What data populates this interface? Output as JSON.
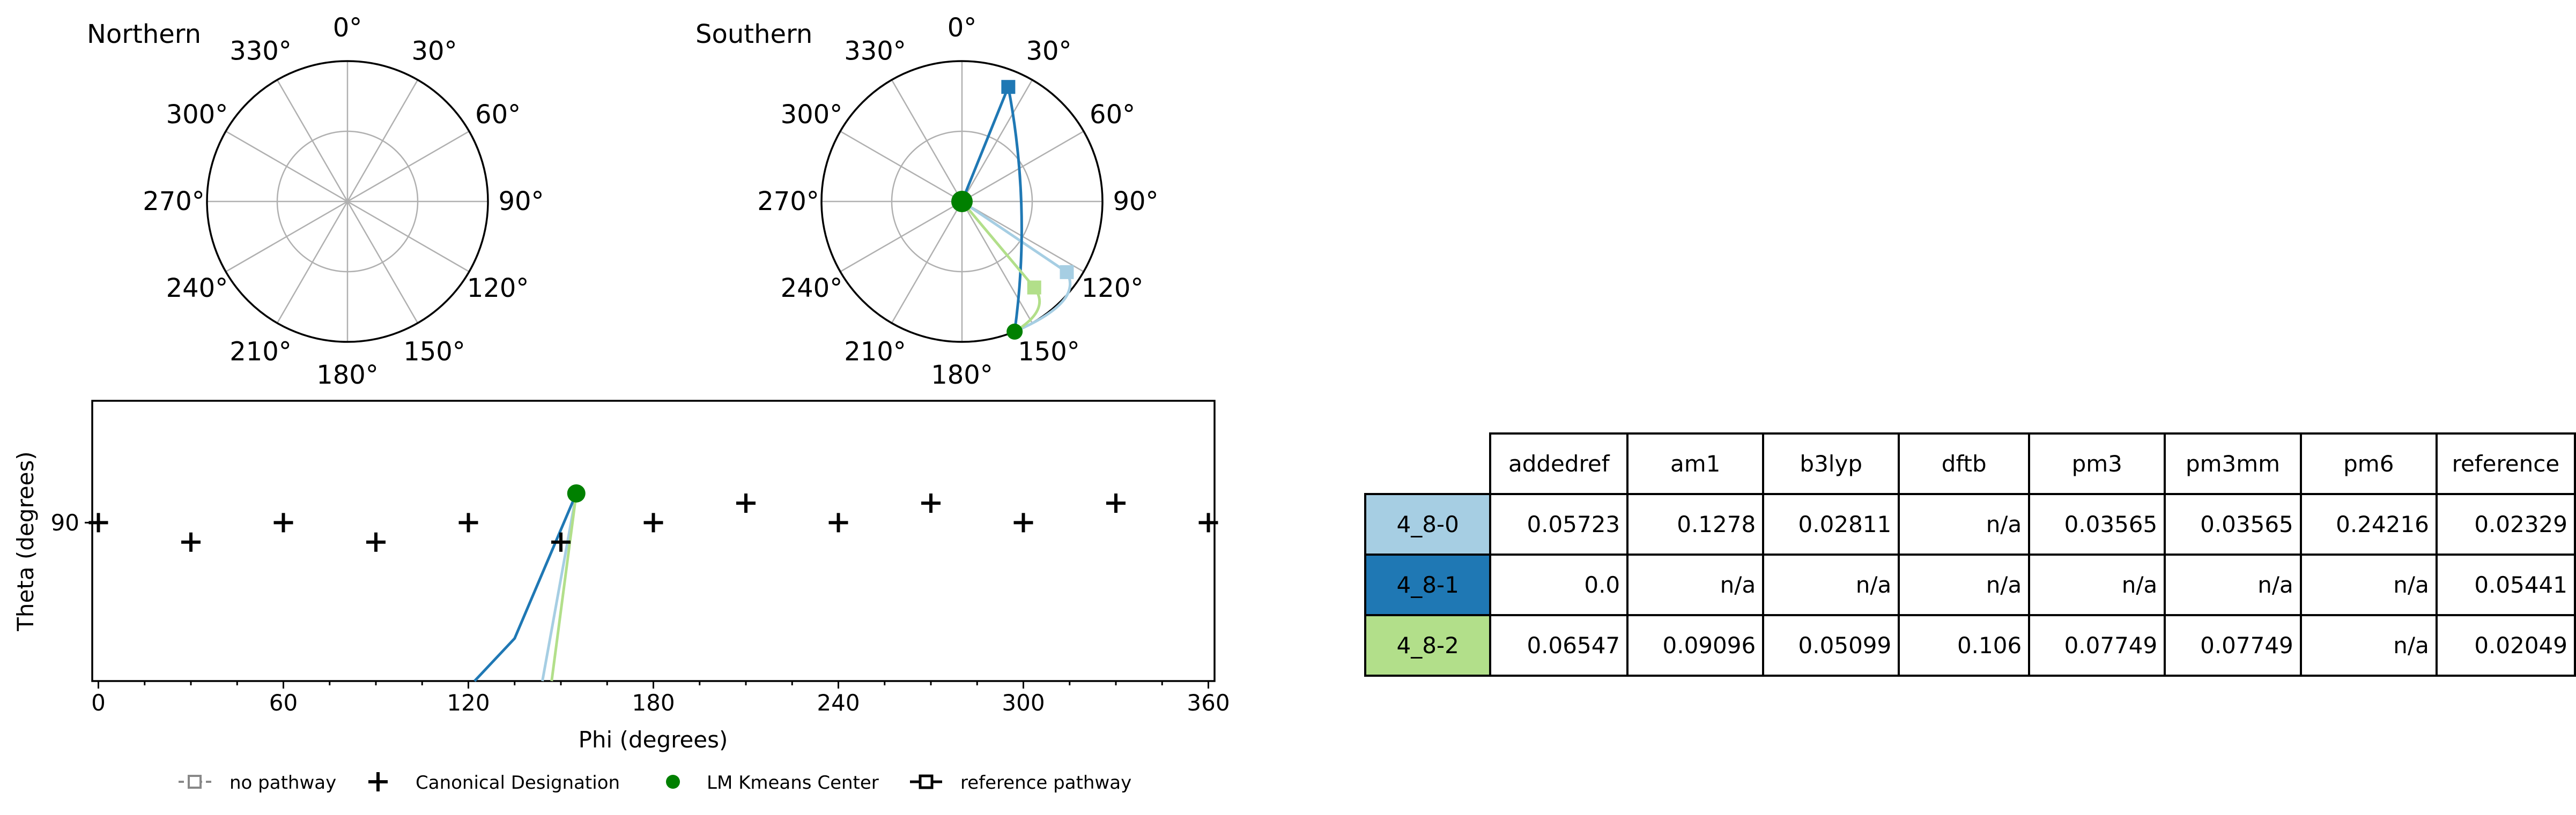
{
  "chart_data": [
    {
      "type": "polar",
      "title": "Northern",
      "angle_tick_labels": [
        "0°",
        "30°",
        "60°",
        "90°",
        "120°",
        "150°",
        "180°",
        "210°",
        "240°",
        "270°",
        "300°",
        "330°"
      ],
      "grid": true,
      "series": []
    },
    {
      "type": "polar",
      "title": "Southern",
      "angle_tick_labels": [
        "0°",
        "30°",
        "60°",
        "90°",
        "120°",
        "150°",
        "180°",
        "210°",
        "240°",
        "270°",
        "300°",
        "330°"
      ],
      "grid": true,
      "series": [
        {
          "name": "4_8-0",
          "color": "#a6cee3",
          "endpoint": {
            "phi": 124,
            "r": 0.9
          }
        },
        {
          "name": "4_8-1",
          "color": "#1f78b4",
          "endpoint": {
            "phi": 22,
            "r": 0.88
          }
        },
        {
          "name": "4_8-2",
          "color": "#b2df8a",
          "endpoint": {
            "phi": 140,
            "r": 0.8
          }
        }
      ],
      "lm_kmeans_center": [
        {
          "phi": 0,
          "r": 0.0
        },
        {
          "phi": 158,
          "r": 1.0
        }
      ]
    },
    {
      "type": "scatter",
      "xlabel": "Phi (degrees)",
      "ylabel": "Theta (degrees)",
      "xlim": [
        -2,
        362
      ],
      "x_ticks": [
        0,
        60,
        120,
        180,
        240,
        300,
        360
      ],
      "y_ticks": [
        90
      ],
      "ylim": [
        77,
        100
      ],
      "canonical_designation": [
        {
          "phi": 0,
          "theta": 90
        },
        {
          "phi": 30,
          "theta": 88.4
        },
        {
          "phi": 60,
          "theta": 90
        },
        {
          "phi": 90,
          "theta": 88.4
        },
        {
          "phi": 120,
          "theta": 90
        },
        {
          "phi": 150,
          "theta": 88.4
        },
        {
          "phi": 180,
          "theta": 90
        },
        {
          "phi": 210,
          "theta": 91.6
        },
        {
          "phi": 240,
          "theta": 90
        },
        {
          "phi": 270,
          "theta": 91.6
        },
        {
          "phi": 300,
          "theta": 90
        },
        {
          "phi": 330,
          "theta": 91.6
        },
        {
          "phi": 360,
          "theta": 90
        }
      ],
      "lm_kmeans_center": [
        {
          "phi": 155,
          "theta": 92.4
        }
      ],
      "series": [
        {
          "name": "4_8-0",
          "color": "#a6cee3",
          "points": [
            {
              "phi": 144,
              "theta": 77
            },
            {
              "phi": 155,
              "theta": 92.4
            }
          ]
        },
        {
          "name": "4_8-1",
          "color": "#1f78b4",
          "points": [
            {
              "phi": 122,
              "theta": 77
            },
            {
              "phi": 135,
              "theta": 80.5
            },
            {
              "phi": 155,
              "theta": 92.4
            }
          ]
        },
        {
          "name": "4_8-2",
          "color": "#b2df8a",
          "points": [
            {
              "phi": 147,
              "theta": 77
            },
            {
              "phi": 155,
              "theta": 92.4
            }
          ]
        }
      ],
      "legend": {
        "placement": "bottom",
        "entries": [
          "no pathway",
          "Canonical Designation",
          "LM Kmeans Center",
          "reference pathway"
        ]
      }
    },
    {
      "type": "table",
      "columns": [
        "addedref",
        "am1",
        "b3lyp",
        "dftb",
        "pm3",
        "pm3mm",
        "pm6",
        "reference"
      ],
      "rows": [
        {
          "label": "4_8-0",
          "color": "#a6cee3",
          "values": [
            "0.05723",
            "0.1278",
            "0.02811",
            "n/a",
            "0.03565",
            "0.03565",
            "0.24216",
            "0.02329"
          ]
        },
        {
          "label": "4_8-1",
          "color": "#1f78b4",
          "values": [
            "0.0",
            "n/a",
            "n/a",
            "n/a",
            "n/a",
            "n/a",
            "n/a",
            "0.05441"
          ]
        },
        {
          "label": "4_8-2",
          "color": "#b2df8a",
          "values": [
            "0.06547",
            "0.09096",
            "0.05099",
            "0.106",
            "0.07749",
            "0.07749",
            "n/a",
            "0.02049"
          ]
        }
      ]
    }
  ]
}
